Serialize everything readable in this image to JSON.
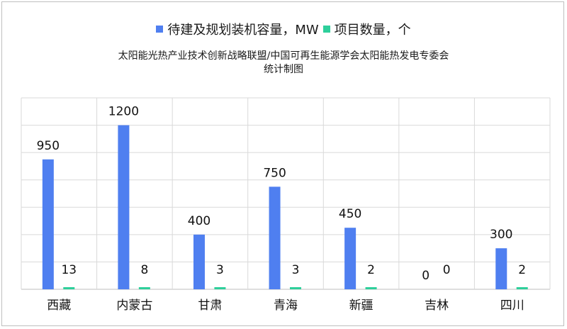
{
  "chart_data": {
    "type": "bar",
    "title_line1": "太阳能光热产业技术创新战略联盟/中国可再生能源学会太阳能热发电专委会",
    "title_line2": "统计制图",
    "categories": [
      "西藏",
      "内蒙古",
      "甘肃",
      "青海",
      "新疆",
      "吉林",
      "四川"
    ],
    "series": [
      {
        "name": "待建及规划装机容量，MW",
        "values": [
          950,
          1200,
          400,
          750,
          450,
          0,
          300
        ],
        "color": "#4f7ff0"
      },
      {
        "name": "项目数量，个",
        "values": [
          13,
          8,
          3,
          3,
          2,
          0,
          2
        ],
        "color": "#2ecf9b"
      }
    ],
    "ylim": [
      0,
      1400
    ],
    "grid": true,
    "legend_position": "top"
  }
}
